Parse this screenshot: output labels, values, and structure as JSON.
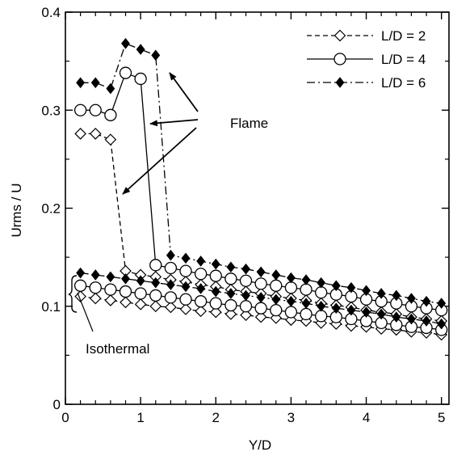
{
  "chart_data": {
    "type": "line",
    "xlabel": "Y/D",
    "ylabel": "Urms / U",
    "xlim": [
      0,
      5.1
    ],
    "ylim": [
      0,
      0.4
    ],
    "xticks": [
      0,
      1,
      2,
      3,
      4,
      5
    ],
    "yticks": [
      0,
      0.1,
      0.2,
      0.3,
      0.4
    ],
    "xtick_labels": [
      "0",
      "1",
      "2",
      "3",
      "4",
      "5"
    ],
    "ytick_labels": [
      "0",
      "0.1",
      "0.2",
      "0.3",
      "0.4"
    ],
    "grid": false,
    "legend_position": "top-right",
    "series": [
      {
        "name": "L/D = 2",
        "marker": "diamond-open",
        "line": "dashed",
        "flame": {
          "x": [
            0.2,
            0.4,
            0.6,
            0.8,
            1.0,
            1.2,
            1.4,
            1.6,
            1.8,
            2.0,
            2.2,
            2.4,
            2.6,
            2.8,
            3.0,
            3.2,
            3.4,
            3.6,
            3.8,
            4.0,
            4.2,
            4.4,
            4.6,
            4.8,
            5.0
          ],
          "y": [
            0.276,
            0.276,
            0.27,
            0.136,
            0.132,
            0.13,
            0.127,
            0.125,
            0.122,
            0.12,
            0.117,
            0.115,
            0.113,
            0.11,
            0.108,
            0.106,
            0.103,
            0.101,
            0.099,
            0.096,
            0.094,
            0.092,
            0.089,
            0.087,
            0.085
          ]
        },
        "isothermal": {
          "x": [
            0.2,
            0.4,
            0.6,
            0.8,
            1.0,
            1.2,
            1.4,
            1.6,
            1.8,
            2.0,
            2.2,
            2.4,
            2.6,
            2.8,
            3.0,
            3.2,
            3.4,
            3.6,
            3.8,
            4.0,
            4.2,
            4.4,
            4.6,
            4.8,
            5.0
          ],
          "y": [
            0.11,
            0.108,
            0.106,
            0.104,
            0.102,
            0.1,
            0.099,
            0.097,
            0.095,
            0.094,
            0.092,
            0.091,
            0.089,
            0.088,
            0.086,
            0.085,
            0.083,
            0.082,
            0.08,
            0.079,
            0.077,
            0.076,
            0.074,
            0.073,
            0.071
          ]
        }
      },
      {
        "name": "L/D = 4",
        "marker": "circle-open",
        "line": "solid",
        "flame": {
          "x": [
            0.2,
            0.4,
            0.6,
            0.8,
            1.0,
            1.2,
            1.4,
            1.6,
            1.8,
            2.0,
            2.2,
            2.4,
            2.6,
            2.8,
            3.0,
            3.2,
            3.4,
            3.6,
            3.8,
            4.0,
            4.2,
            4.4,
            4.6,
            4.8,
            5.0
          ],
          "y": [
            0.3,
            0.3,
            0.295,
            0.338,
            0.332,
            0.142,
            0.139,
            0.136,
            0.133,
            0.131,
            0.128,
            0.126,
            0.123,
            0.121,
            0.119,
            0.117,
            0.114,
            0.112,
            0.11,
            0.107,
            0.105,
            0.103,
            0.1,
            0.098,
            0.096
          ]
        },
        "isothermal": {
          "x": [
            0.2,
            0.4,
            0.6,
            0.8,
            1.0,
            1.2,
            1.4,
            1.6,
            1.8,
            2.0,
            2.2,
            2.4,
            2.6,
            2.8,
            3.0,
            3.2,
            3.4,
            3.6,
            3.8,
            4.0,
            4.2,
            4.4,
            4.6,
            4.8,
            5.0
          ],
          "y": [
            0.121,
            0.119,
            0.117,
            0.115,
            0.113,
            0.111,
            0.109,
            0.107,
            0.105,
            0.103,
            0.101,
            0.1,
            0.098,
            0.096,
            0.094,
            0.092,
            0.09,
            0.089,
            0.087,
            0.085,
            0.083,
            0.081,
            0.079,
            0.078,
            0.076
          ]
        }
      },
      {
        "name": "L/D = 6",
        "marker": "diamond-filled",
        "line": "dash-dot",
        "flame": {
          "x": [
            0.2,
            0.4,
            0.6,
            0.8,
            1.0,
            1.2,
            1.4,
            1.6,
            1.8,
            2.0,
            2.2,
            2.4,
            2.6,
            2.8,
            3.0,
            3.2,
            3.4,
            3.6,
            3.8,
            4.0,
            4.2,
            4.4,
            4.6,
            4.8,
            5.0
          ],
          "y": [
            0.328,
            0.328,
            0.322,
            0.368,
            0.362,
            0.356,
            0.152,
            0.149,
            0.146,
            0.143,
            0.14,
            0.138,
            0.135,
            0.132,
            0.129,
            0.127,
            0.124,
            0.121,
            0.119,
            0.116,
            0.113,
            0.111,
            0.108,
            0.105,
            0.103
          ]
        },
        "isothermal": {
          "x": [
            0.2,
            0.4,
            0.6,
            0.8,
            1.0,
            1.2,
            1.4,
            1.6,
            1.8,
            2.0,
            2.2,
            2.4,
            2.6,
            2.8,
            3.0,
            3.2,
            3.4,
            3.6,
            3.8,
            4.0,
            4.2,
            4.4,
            4.6,
            4.8,
            5.0
          ],
          "y": [
            0.134,
            0.132,
            0.13,
            0.128,
            0.126,
            0.124,
            0.122,
            0.12,
            0.118,
            0.115,
            0.113,
            0.111,
            0.109,
            0.107,
            0.105,
            0.103,
            0.1,
            0.098,
            0.096,
            0.094,
            0.092,
            0.089,
            0.087,
            0.085,
            0.082
          ]
        }
      }
    ],
    "annotations": [
      {
        "text": "Flame"
      },
      {
        "text": "Isothermal"
      }
    ]
  }
}
